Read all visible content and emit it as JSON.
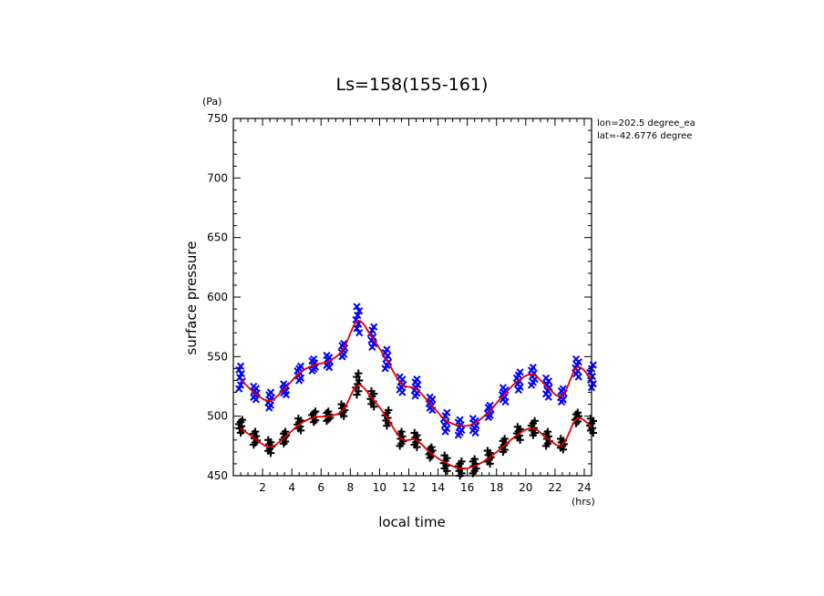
{
  "chart_data": {
    "type": "scatter",
    "title": "Ls=158(155-161)",
    "xlabel": "local time",
    "x_unit": "(hrs)",
    "ylabel": "surface pressure",
    "y_unit": "(Pa)",
    "xlim": [
      0,
      24.5
    ],
    "ylim": [
      450,
      750
    ],
    "x_ticks": [
      2,
      4,
      6,
      8,
      10,
      12,
      14,
      16,
      18,
      20,
      22,
      24
    ],
    "y_ticks": [
      450,
      500,
      550,
      600,
      650,
      700,
      750
    ],
    "annotations": [
      "lon=202.5 degree_ea",
      "lat=-42.6776 degree"
    ],
    "x": [
      0.5,
      1.5,
      2.5,
      3.5,
      4.5,
      5.5,
      6.5,
      7.5,
      8.5,
      9.5,
      10.5,
      11.5,
      12.5,
      13.5,
      14.5,
      15.5,
      16.5,
      17.5,
      18.5,
      19.5,
      20.5,
      21.5,
      22.5,
      23.5,
      24.5
    ],
    "series": [
      {
        "marker": "x",
        "color": "#0000ff",
        "values": [
          531,
          519,
          513,
          523,
          536,
          543,
          546,
          556,
          580,
          566,
          547,
          527,
          523,
          510,
          497,
          492,
          494,
          504,
          518,
          530,
          535,
          524,
          517,
          541,
          531
        ],
        "spread": [
          [
            523,
            542
          ],
          [
            514,
            525
          ],
          [
            507,
            520
          ],
          [
            518,
            527
          ],
          [
            530,
            542
          ],
          [
            538,
            548
          ],
          [
            541,
            551
          ],
          [
            550,
            561
          ],
          [
            570,
            592
          ],
          [
            558,
            575
          ],
          [
            540,
            556
          ],
          [
            520,
            533
          ],
          [
            517,
            531
          ],
          [
            505,
            516
          ],
          [
            487,
            503
          ],
          [
            484,
            497
          ],
          [
            486,
            498
          ],
          [
            499,
            509
          ],
          [
            512,
            524
          ],
          [
            522,
            537
          ],
          [
            526,
            541
          ],
          [
            516,
            532
          ],
          [
            512,
            523
          ],
          [
            533,
            548
          ],
          [
            524,
            543
          ]
        ]
      },
      {
        "marker": "+",
        "color": "#000000",
        "values": [
          490,
          481,
          474,
          482,
          493,
          499,
          500,
          505,
          526,
          515,
          499,
          481,
          480,
          469,
          461,
          456,
          458,
          465,
          475,
          485,
          490,
          481,
          476,
          498,
          491
        ],
        "spread": [
          [
            486,
            497
          ],
          [
            476,
            487
          ],
          [
            469,
            480
          ],
          [
            477,
            487
          ],
          [
            488,
            498
          ],
          [
            495,
            504
          ],
          [
            496,
            504
          ],
          [
            500,
            510
          ],
          [
            518,
            536
          ],
          [
            508,
            521
          ],
          [
            492,
            505
          ],
          [
            475,
            487
          ],
          [
            474,
            486
          ],
          [
            465,
            474
          ],
          [
            454,
            467
          ],
          [
            450,
            462
          ],
          [
            452,
            464
          ],
          [
            460,
            471
          ],
          [
            470,
            481
          ],
          [
            480,
            491
          ],
          [
            484,
            496
          ],
          [
            475,
            487
          ],
          [
            472,
            481
          ],
          [
            494,
            503
          ],
          [
            486,
            498
          ]
        ]
      }
    ],
    "fit_lines": [
      {
        "color": "#e00000",
        "values": [
          531,
          519,
          513,
          523,
          536,
          543,
          546,
          556,
          580,
          566,
          547,
          527,
          523,
          510,
          497,
          492,
          494,
          504,
          518,
          530,
          535,
          524,
          517,
          541,
          531
        ]
      },
      {
        "color": "#e00000",
        "values": [
          490,
          481,
          474,
          482,
          493,
          499,
          500,
          505,
          526,
          515,
          499,
          481,
          480,
          469,
          461,
          456,
          458,
          465,
          475,
          485,
          490,
          481,
          476,
          498,
          491
        ]
      }
    ],
    "grid": false
  }
}
